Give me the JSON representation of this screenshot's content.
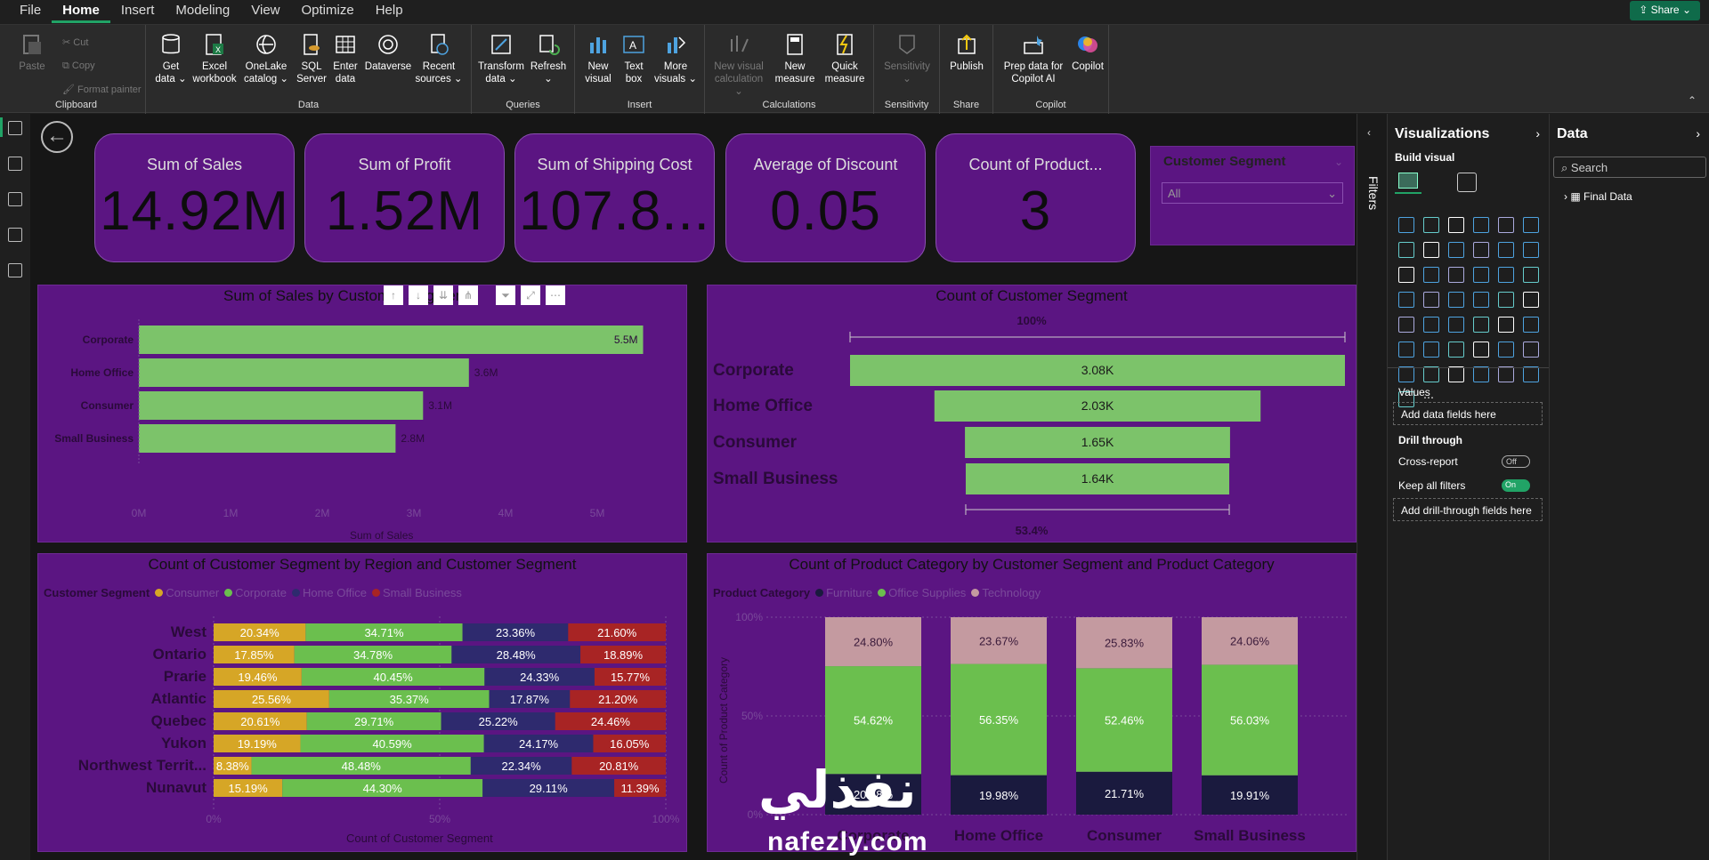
{
  "menu": {
    "items": [
      "File",
      "Home",
      "Insert",
      "Modeling",
      "View",
      "Optimize",
      "Help"
    ],
    "active": "Home",
    "share_label": "Share"
  },
  "ribbon": {
    "clipboard": {
      "paste": "Paste",
      "cut": "Cut",
      "copy": "Copy",
      "format_painter": "Format painter",
      "group": "Clipboard"
    },
    "data": {
      "get_data": "Get data",
      "excel": "Excel workbook",
      "onelake": "OneLake catalog",
      "sql": "SQL Server",
      "enter": "Enter data",
      "dataverse": "Dataverse",
      "recent": "Recent sources",
      "group": "Data"
    },
    "queries": {
      "transform": "Transform data",
      "refresh": "Refresh",
      "group": "Queries"
    },
    "insert": {
      "new_visual": "New visual",
      "text_box": "Text box",
      "more_visuals": "More visuals",
      "group": "Insert"
    },
    "calculations": {
      "new_visual_calc": "New visual calculation",
      "new_measure": "New measure",
      "quick_measure": "Quick measure",
      "group": "Calculations"
    },
    "sensitivity": {
      "label": "Sensitivity",
      "group": "Sensitivity"
    },
    "share": {
      "publish": "Publish",
      "group": "Share"
    },
    "copilot": {
      "prep": "Prep data for Copilot AI",
      "copilot": "Copilot",
      "group": "Copilot"
    }
  },
  "cards": [
    {
      "title": "Sum of Sales",
      "value": "14.92M"
    },
    {
      "title": "Sum of Profit",
      "value": "1.52M"
    },
    {
      "title": "Sum of Shipping Cost",
      "value": "107.8..."
    },
    {
      "title": "Average of Discount",
      "value": "0.05"
    },
    {
      "title": "Count of Product...",
      "value": "3"
    }
  ],
  "slicer": {
    "title": "Customer Segment",
    "value": "All"
  },
  "chart1": {
    "title": "Sum of Sales by Customer Segment",
    "xlabel": "Sum of Sales",
    "ticks": [
      "0M",
      "1M",
      "2M",
      "3M",
      "4M",
      "5M"
    ]
  },
  "chart2": {
    "title": "Count of Customer Segment",
    "top_pct": "100%",
    "bottom_pct": "53.4%"
  },
  "chart3": {
    "title": "Count of Customer Segment by Region and Customer Segment",
    "legend_title": "Customer Segment",
    "xlabel": "Count of Customer Segment",
    "ticks": [
      "0%",
      "50%",
      "100%"
    ]
  },
  "chart4": {
    "title": "Count of Product Category by Customer Segment and Product Category",
    "legend_title": "Product Category",
    "ylabel": "Count of Product Category",
    "ticks": [
      "0%",
      "50%",
      "100%"
    ]
  },
  "chart_data": [
    {
      "type": "bar",
      "title": "Sum of Sales by Customer Segment",
      "categories": [
        "Corporate",
        "Home Office",
        "Consumer",
        "Small Business"
      ],
      "values": [
        5.5,
        3.6,
        3.1,
        2.8
      ],
      "labels": [
        "5.5M",
        "3.6M",
        "3.1M",
        "2.8M"
      ],
      "xlabel": "Sum of Sales",
      "xlim": [
        0,
        6
      ],
      "color": "#7cc36a"
    },
    {
      "type": "bar",
      "title": "Count of Customer Segment",
      "categories": [
        "Corporate",
        "Home Office",
        "Consumer",
        "Small Business"
      ],
      "values": [
        3.08,
        2.03,
        1.65,
        1.64
      ],
      "labels": [
        "3.08K",
        "2.03K",
        "1.65K",
        "1.64K"
      ],
      "color": "#7cc36a"
    },
    {
      "type": "bar",
      "title": "Count of Customer Segment by Region and Customer Segment",
      "categories": [
        "West",
        "Ontario",
        "Prarie",
        "Atlantic",
        "Quebec",
        "Yukon",
        "Northwest Territ...",
        "Nunavut"
      ],
      "series": [
        {
          "name": "Consumer",
          "color": "#d6a626",
          "values": [
            20.34,
            17.85,
            19.46,
            25.56,
            20.61,
            19.19,
            8.38,
            15.19
          ]
        },
        {
          "name": "Corporate",
          "color": "#6bbf4e",
          "values": [
            34.71,
            34.78,
            40.45,
            35.37,
            29.71,
            40.59,
            48.48,
            44.3
          ]
        },
        {
          "name": "Home Office",
          "color": "#2e2a6e",
          "values": [
            23.36,
            28.48,
            24.33,
            17.87,
            25.22,
            24.17,
            22.34,
            29.11
          ]
        },
        {
          "name": "Small Business",
          "color": "#a82424",
          "values": [
            21.6,
            18.89,
            15.77,
            21.2,
            24.46,
            16.05,
            20.81,
            11.39
          ]
        }
      ]
    },
    {
      "type": "bar",
      "title": "Count of Product Category by Customer Segment and Product Category",
      "categories": [
        "Corporate",
        "Home Office",
        "Consumer",
        "Small Business"
      ],
      "series": [
        {
          "name": "Furniture",
          "color": "#1a1a3e",
          "values": [
            20.58,
            19.98,
            21.71,
            19.91
          ],
          "labels": [
            "20.58%",
            "19.98%",
            "21.71%",
            "19.91%"
          ]
        },
        {
          "name": "Office Supplies",
          "color": "#6bbf4e",
          "values": [
            54.62,
            56.35,
            52.46,
            56.03
          ]
        },
        {
          "name": "Technology",
          "color": "#c49aa0",
          "values": [
            24.8,
            23.67,
            25.83,
            24.06
          ]
        }
      ]
    }
  ],
  "filters_label": "Filters",
  "viz": {
    "title": "Visualizations",
    "build": "Build visual",
    "values": "Values",
    "add_data": "Add data fields here",
    "drill": "Drill through",
    "cross": "Cross-report",
    "cross_state": "Off",
    "keep": "Keep all filters",
    "keep_state": "On",
    "add_drill": "Add drill-through fields here"
  },
  "datapane": {
    "title": "Data",
    "search": "Search",
    "table": "Final Data"
  },
  "watermark": {
    "arabic": "نفذلي",
    "latin": "nafezly.com"
  }
}
